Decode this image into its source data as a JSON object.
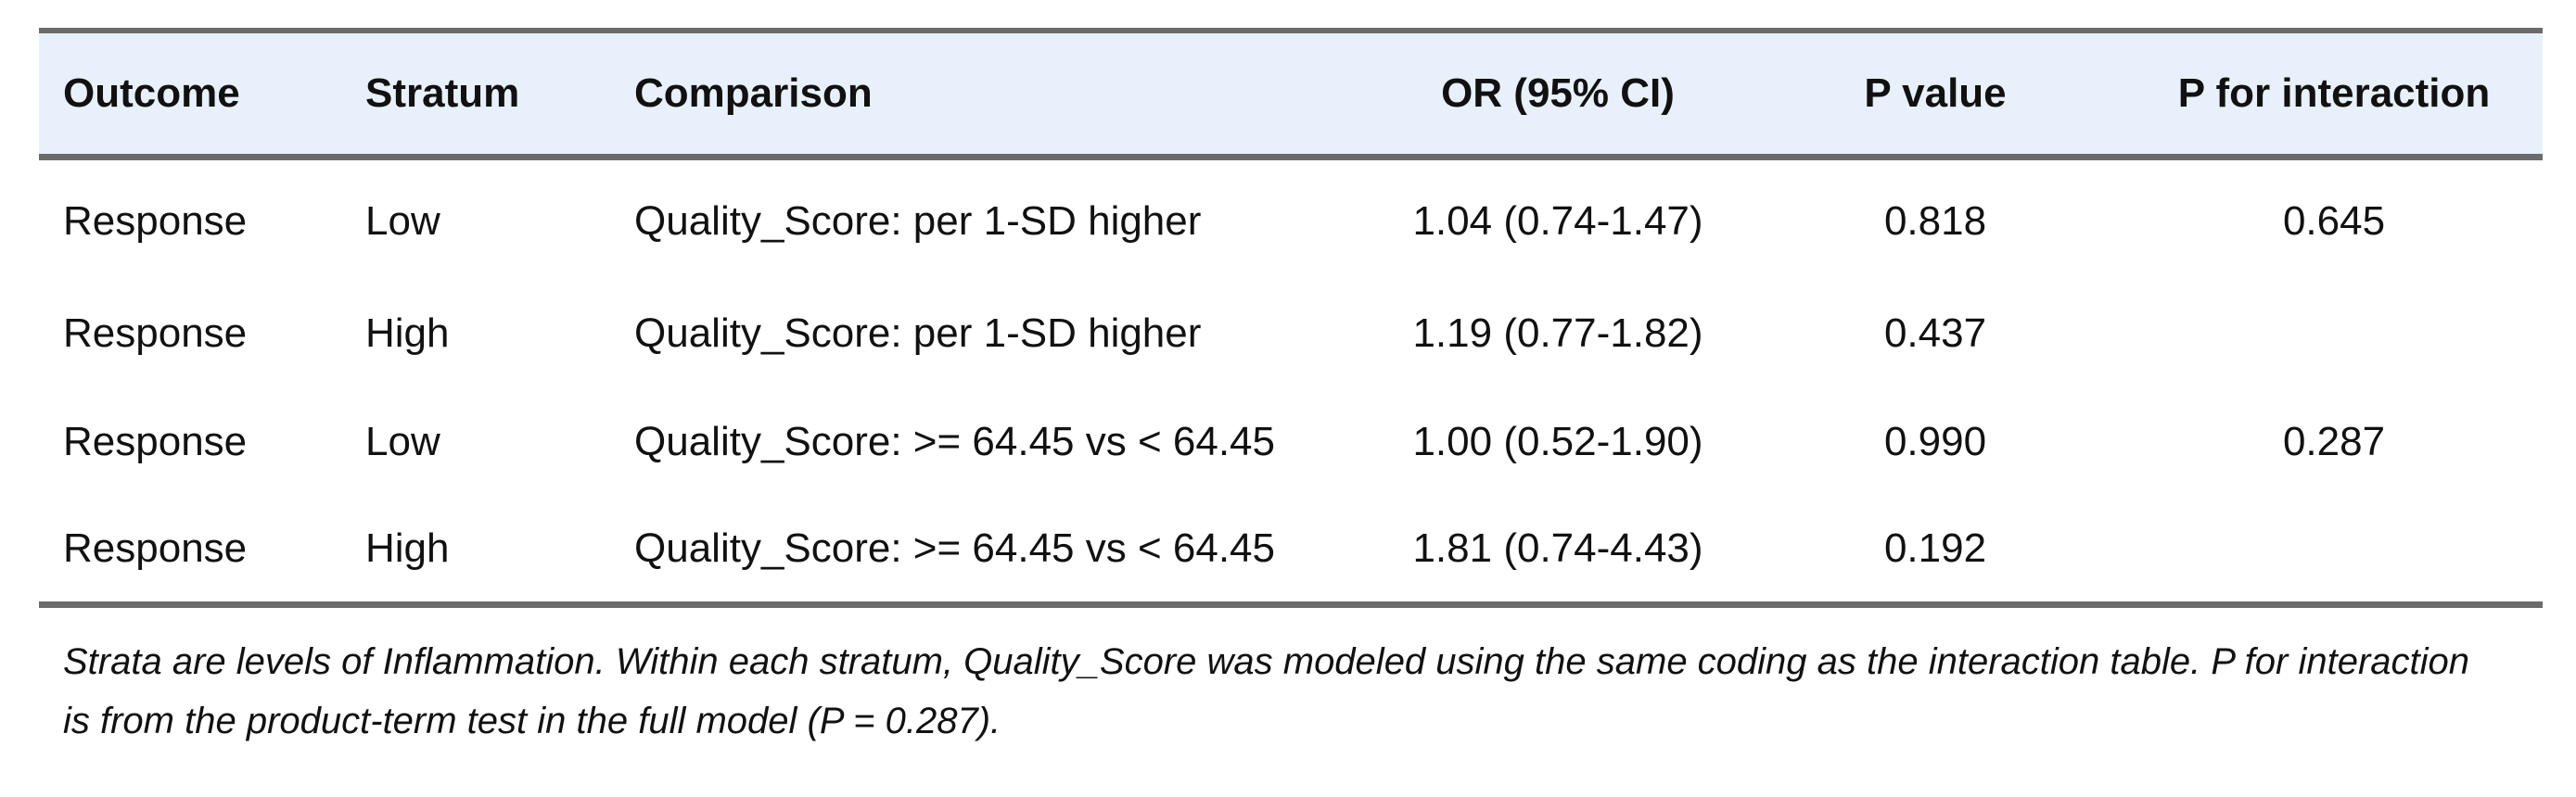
{
  "table": {
    "headers": [
      "Outcome",
      "Stratum",
      "Comparison",
      "OR (95% CI)",
      "P value",
      "P for interaction"
    ],
    "rows": [
      [
        "Response",
        "Low",
        "Quality_Score: per 1-SD higher",
        "1.04 (0.74-1.47)",
        "0.818",
        "0.645"
      ],
      [
        "Response",
        "High",
        "Quality_Score: per 1-SD higher",
        "1.19 (0.77-1.82)",
        "0.437",
        ""
      ],
      [
        "Response",
        "Low",
        "Quality_Score: >= 64.45 vs < 64.45",
        "1.00 (0.52-1.90)",
        "0.990",
        "0.287"
      ],
      [
        "Response",
        "High",
        "Quality_Score: >= 64.45 vs < 64.45",
        "1.81 (0.74-4.43)",
        "0.192",
        ""
      ]
    ]
  },
  "footnote": "Strata are levels of Inflammation. Within each stratum, Quality_Score was modeled using the same coding as the interaction table. P for interaction is from the product-term test in the full model (P = 0.287).",
  "colors": {
    "header_background": "#e8f1fb",
    "rule": "#6b6b6b",
    "text": "#111111"
  }
}
